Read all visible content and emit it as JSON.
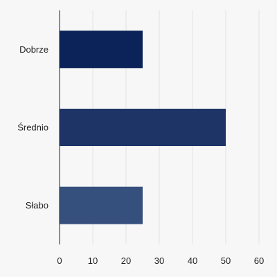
{
  "chart_data": {
    "type": "bar",
    "orientation": "horizontal",
    "categories": [
      "Dobrze",
      "Średnio",
      "Słabo"
    ],
    "values": [
      25,
      50,
      25
    ],
    "bar_colors": [
      "#0b2358",
      "#1e3466",
      "#36507d"
    ],
    "xlim": [
      0,
      60
    ],
    "xticks": [
      0,
      10,
      20,
      30,
      40,
      50,
      60
    ],
    "title": "",
    "xlabel": "",
    "ylabel": "",
    "grid": "vertical",
    "legend": "none"
  },
  "colors": {
    "background": "#f7f7f7",
    "gridline": "#e3e3e3",
    "axis": "#222222"
  }
}
